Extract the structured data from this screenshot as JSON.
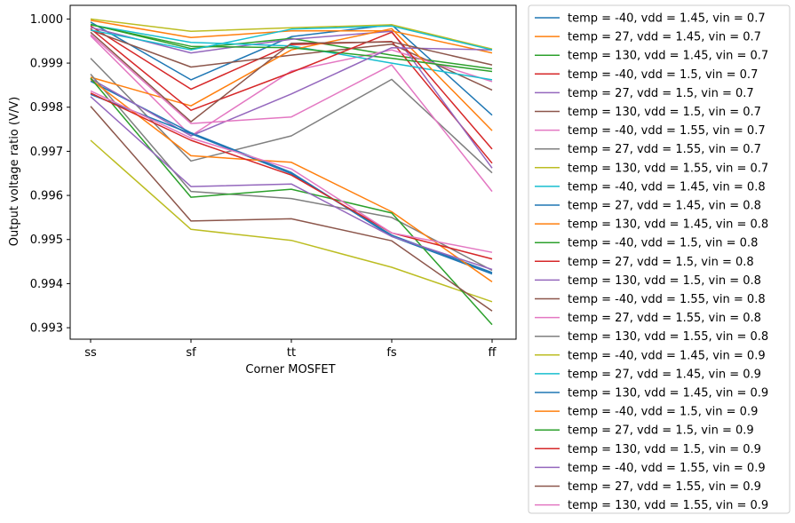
{
  "chart_data": {
    "type": "line",
    "categories": [
      "ss",
      "sf",
      "tt",
      "fs",
      "ff"
    ],
    "xlabel": "Corner MOSFET",
    "ylabel": "Output voltage ratio (V/V)",
    "ylim": [
      0.99274,
      1.00031
    ],
    "yticks": [
      0.993,
      0.994,
      0.995,
      0.996,
      0.997,
      0.998,
      0.999,
      1.0
    ],
    "ytick_labels": [
      "0.993",
      "0.994",
      "0.995",
      "0.996",
      "0.997",
      "0.998",
      "0.999",
      "1.000"
    ],
    "grid": false,
    "legend_position": "outside-right",
    "series": [
      {
        "name": "temp = -40, vdd = 1.45, vin = 0.7",
        "color": "#1f77b4",
        "values": [
          0.99993,
          0.99862,
          0.9996,
          0.99987,
          0.99782
        ]
      },
      {
        "name": "temp = 27, vdd = 1.45, vin = 0.7",
        "color": "#ff7f0e",
        "values": [
          0.99997,
          0.99958,
          0.99973,
          0.99973,
          0.99923
        ]
      },
      {
        "name": "temp = 130, vdd = 1.45, vin = 0.7",
        "color": "#2ca02c",
        "values": [
          0.99988,
          0.99933,
          0.99956,
          0.99918,
          0.99887
        ]
      },
      {
        "name": "temp = -40, vdd = 1.5, vin = 0.7",
        "color": "#d62728",
        "values": [
          0.99984,
          0.99841,
          0.99942,
          0.99949,
          0.99673
        ]
      },
      {
        "name": "temp = 27, vdd = 1.5, vin = 0.7",
        "color": "#9467bd",
        "values": [
          0.99981,
          0.99923,
          0.99954,
          0.99972,
          0.99662
        ]
      },
      {
        "name": "temp = 130, vdd = 1.5, vin = 0.7",
        "color": "#8c564b",
        "values": [
          0.99975,
          0.99891,
          0.99918,
          0.99943,
          0.99839
        ]
      },
      {
        "name": "temp = -40, vdd = 1.55, vin = 0.7",
        "color": "#e377c2",
        "values": [
          0.99962,
          0.99735,
          0.99882,
          0.9993,
          0.99858
        ]
      },
      {
        "name": "temp = 27, vdd = 1.55, vin = 0.7",
        "color": "#7f7f7f",
        "values": [
          0.99911,
          0.99678,
          0.99735,
          0.99863,
          0.99651
        ]
      },
      {
        "name": "temp = 130, vdd = 1.55, vin = 0.7",
        "color": "#bcbd22",
        "values": [
          1.0,
          0.99972,
          0.9998,
          0.99987,
          0.99932
        ]
      },
      {
        "name": "temp = -40, vdd = 1.45, vin = 0.8",
        "color": "#17becf",
        "values": [
          0.99987,
          0.99947,
          0.99939,
          0.999,
          0.99862
        ]
      },
      {
        "name": "temp = 27, vdd = 1.45, vin = 0.8",
        "color": "#1f77b4",
        "values": [
          0.99859,
          0.99742,
          0.99652,
          0.99507,
          0.99422
        ]
      },
      {
        "name": "temp = 130, vdd = 1.45, vin = 0.8",
        "color": "#ff7f0e",
        "values": [
          0.99868,
          0.99803,
          0.9993,
          0.99978,
          0.99747
        ]
      },
      {
        "name": "temp = -40, vdd = 1.5, vin = 0.8",
        "color": "#2ca02c",
        "values": [
          0.99987,
          0.99938,
          0.99935,
          0.99911,
          0.99881
        ]
      },
      {
        "name": "temp = 27, vdd = 1.5, vin = 0.8",
        "color": "#d62728",
        "values": [
          0.99978,
          0.99793,
          0.99879,
          0.9997,
          0.99705
        ]
      },
      {
        "name": "temp = 130, vdd = 1.5, vin = 0.8",
        "color": "#9467bd",
        "values": [
          0.99865,
          0.99735,
          0.9983,
          0.99935,
          0.9993
        ]
      },
      {
        "name": "temp = -40, vdd = 1.55, vin = 0.8",
        "color": "#8c564b",
        "values": [
          0.9997,
          0.99767,
          0.99945,
          0.99948,
          0.99896
        ]
      },
      {
        "name": "temp = 27, vdd = 1.55, vin = 0.8",
        "color": "#e377c2",
        "values": [
          0.99965,
          0.99763,
          0.99778,
          0.99896,
          0.99609
        ]
      },
      {
        "name": "temp = 130, vdd = 1.55, vin = 0.8",
        "color": "#7f7f7f",
        "values": [
          0.99875,
          0.99609,
          0.99593,
          0.9955,
          0.9943
        ]
      },
      {
        "name": "temp = -40, vdd = 1.45, vin = 0.9",
        "color": "#bcbd22",
        "values": [
          0.99725,
          0.99523,
          0.99498,
          0.99437,
          0.99359
        ]
      },
      {
        "name": "temp = 27, vdd = 1.45, vin = 0.9",
        "color": "#17becf",
        "values": [
          0.99975,
          0.9993,
          0.99977,
          0.99984,
          0.9993
        ]
      },
      {
        "name": "temp = 130, vdd = 1.45, vin = 0.9",
        "color": "#1f77b4",
        "values": [
          0.99829,
          0.9974,
          0.99649,
          0.9951,
          0.99425
        ]
      },
      {
        "name": "temp = -40, vdd = 1.5, vin = 0.9",
        "color": "#ff7f0e",
        "values": [
          0.99863,
          0.9969,
          0.99675,
          0.99563,
          0.99404
        ]
      },
      {
        "name": "temp = 27, vdd = 1.5, vin = 0.9",
        "color": "#2ca02c",
        "values": [
          0.99866,
          0.99596,
          0.99614,
          0.9956,
          0.99307
        ]
      },
      {
        "name": "temp = 130, vdd = 1.5, vin = 0.9",
        "color": "#d62728",
        "values": [
          0.99832,
          0.99725,
          0.99646,
          0.99515,
          0.99456
        ]
      },
      {
        "name": "temp = -40, vdd = 1.55, vin = 0.9",
        "color": "#9467bd",
        "values": [
          0.99824,
          0.9962,
          0.99626,
          0.99507,
          0.99432
        ]
      },
      {
        "name": "temp = 27, vdd = 1.55, vin = 0.9",
        "color": "#8c564b",
        "values": [
          0.99802,
          0.99542,
          0.99547,
          0.99497,
          0.99338
        ]
      },
      {
        "name": "temp = 130, vdd = 1.55, vin = 0.9",
        "color": "#e377c2",
        "values": [
          0.99837,
          0.9973,
          0.9966,
          0.99515,
          0.99471
        ]
      }
    ]
  }
}
